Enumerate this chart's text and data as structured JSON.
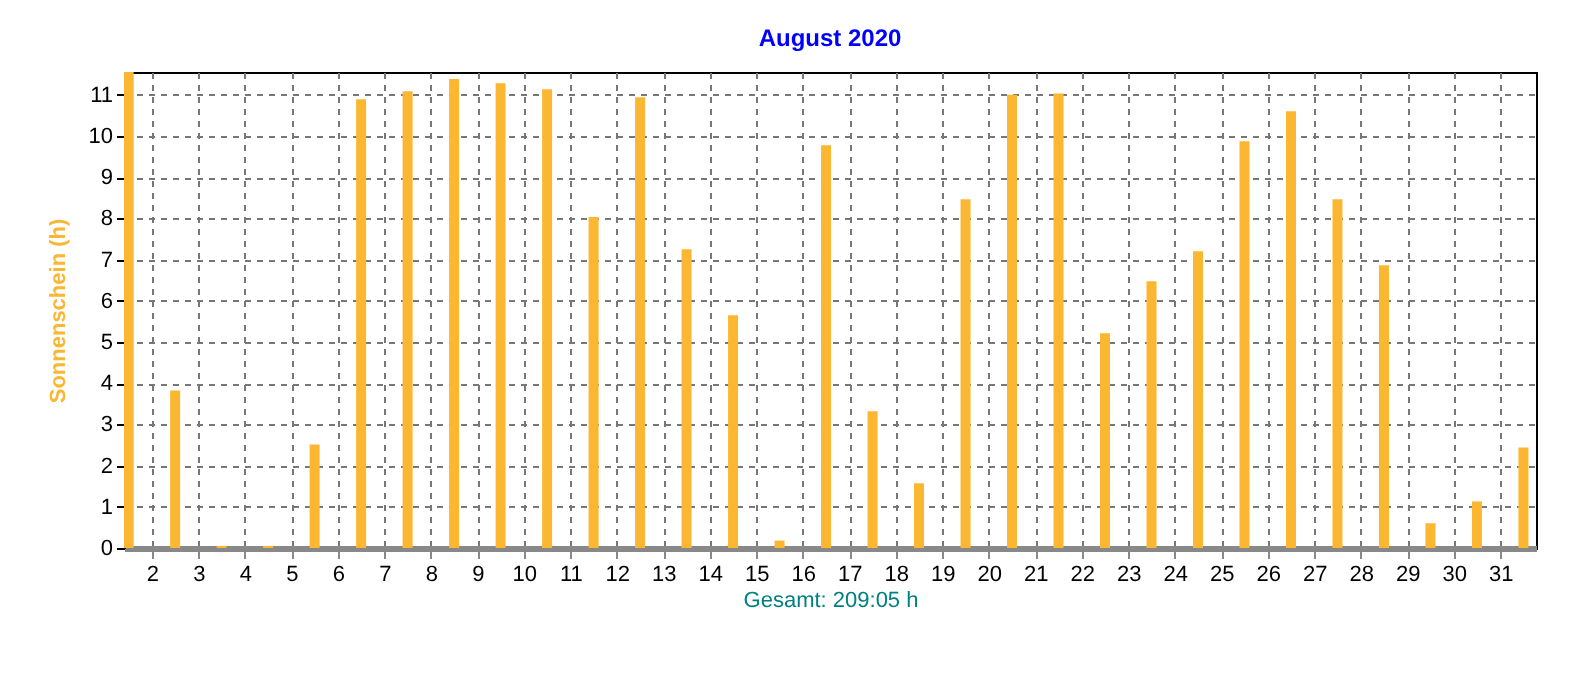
{
  "chart_data": {
    "type": "bar",
    "title": "August 2020",
    "ylabel": "Sonnenschein  (h)",
    "annotations": [
      "Gesamt: 209:05 h"
    ],
    "x": [
      1.5,
      2.5,
      3.5,
      4.5,
      5.5,
      6.5,
      7.5,
      8.5,
      9.5,
      10.5,
      11.5,
      12.5,
      13.5,
      14.5,
      15.5,
      16.5,
      17.5,
      18.5,
      19.5,
      20.5,
      21.5,
      22.5,
      23.5,
      24.5,
      25.5,
      26.5,
      27.5,
      28.5,
      29.5,
      30.5,
      31.5
    ],
    "values": [
      11.55,
      3.82,
      0.05,
      0.05,
      2.51,
      10.89,
      11.08,
      11.38,
      11.28,
      11.13,
      8.03,
      10.94,
      7.25,
      5.65,
      0.18,
      9.77,
      3.32,
      1.57,
      8.46,
      11.0,
      11.03,
      5.21,
      6.47,
      7.2,
      9.87,
      10.6,
      8.46,
      6.86,
      0.6,
      1.13,
      2.44
    ],
    "color": "#fbb731",
    "xlim": [
      1.4,
      31.77
    ],
    "xticks": [
      2,
      3,
      4,
      5,
      6,
      7,
      8,
      9,
      10,
      11,
      12,
      13,
      14,
      15,
      16,
      17,
      18,
      19,
      20,
      21,
      22,
      23,
      24,
      25,
      26,
      27,
      28,
      29,
      30,
      31
    ],
    "ylim": [
      0,
      11.55
    ],
    "yticks": [
      0,
      1,
      2,
      3,
      4,
      5,
      6,
      7,
      8,
      9,
      10,
      11
    ],
    "grid": true
  }
}
